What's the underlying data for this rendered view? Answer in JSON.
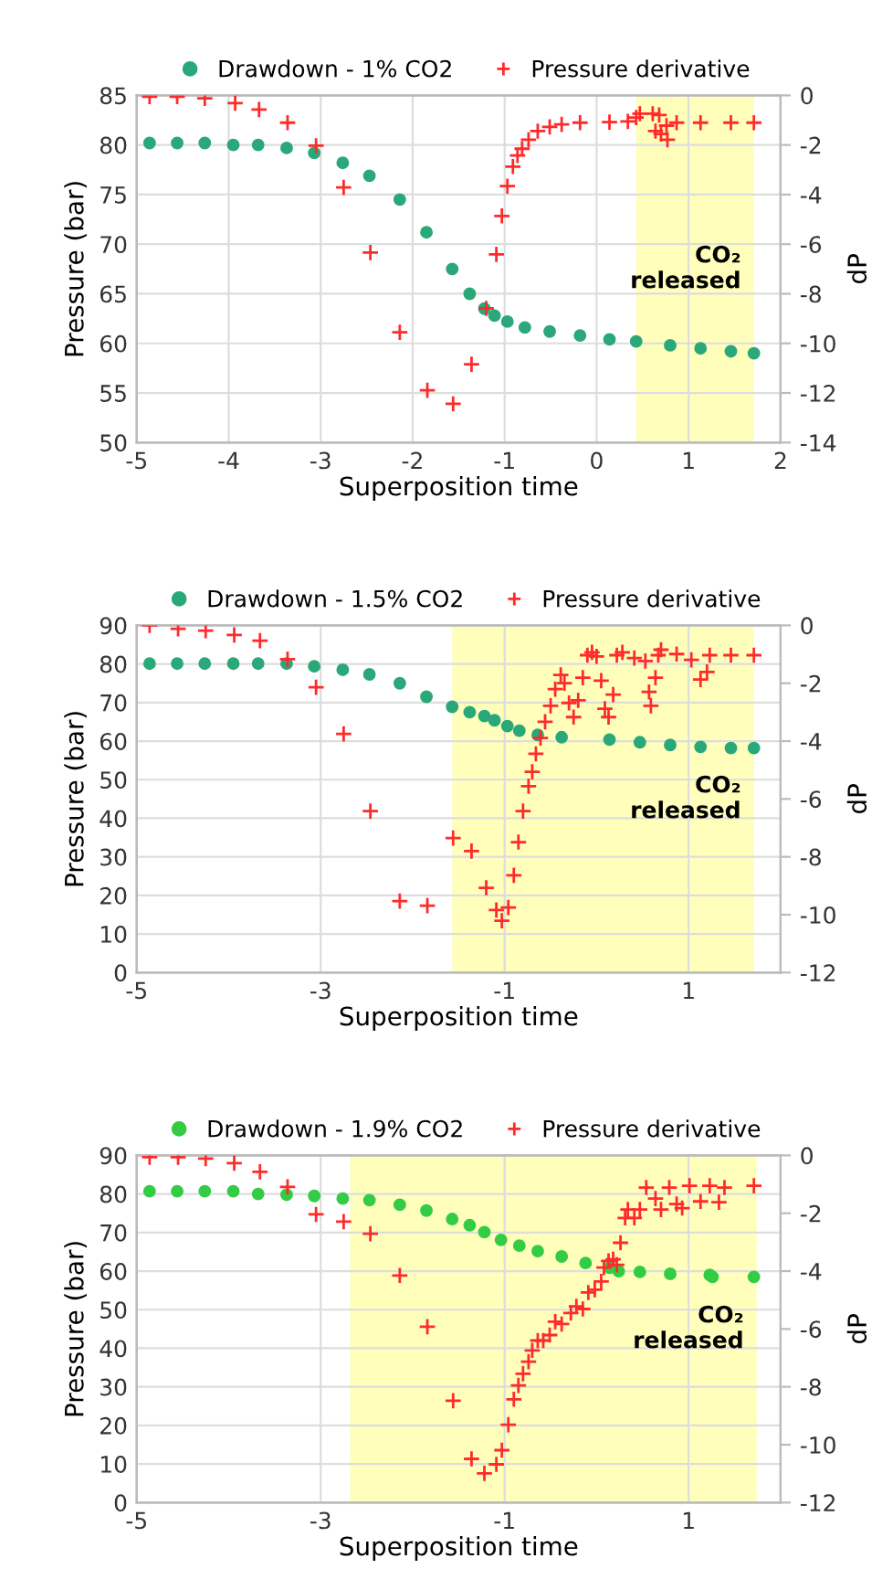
{
  "chart_data": [
    {
      "type": "scatter",
      "xlabel": "Superposition time",
      "ylabel": "Pressure (bar)",
      "y2label": "dP",
      "xlim": [
        -5,
        2
      ],
      "xticks": [
        -5,
        -4,
        -3,
        -2,
        -1,
        0,
        1,
        2
      ],
      "ylim": [
        50,
        85
      ],
      "yticks": [
        50,
        55,
        60,
        65,
        70,
        75,
        80,
        85
      ],
      "y2lim": [
        -14,
        0
      ],
      "y2ticks": [
        -14,
        -12,
        -10,
        -8,
        -6,
        -4,
        -2,
        0
      ],
      "grid": true,
      "legend": "top",
      "bands": [
        {
          "axis": "x",
          "from": 0.43,
          "to": 1.71,
          "color": "#ffffbb",
          "label": "CO₂\nreleased"
        }
      ],
      "series": [
        {
          "name": "Drawdown - 1% CO2",
          "color": "#2aa87a",
          "marker": "circle",
          "x": [
            -4.86,
            -4.56,
            -4.26,
            -3.95,
            -3.68,
            -3.37,
            -3.07,
            -2.76,
            -2.47,
            -2.14,
            -1.85,
            -1.57,
            -1.38,
            -1.22,
            -1.11,
            -0.97,
            -0.78,
            -0.51,
            -0.18,
            0.14,
            0.43,
            0.8,
            1.13,
            1.46,
            1.71
          ],
          "values": [
            80.2,
            80.2,
            80.2,
            80.0,
            80.0,
            79.7,
            79.2,
            78.2,
            76.9,
            74.5,
            71.2,
            67.5,
            65.0,
            63.5,
            62.8,
            62.2,
            61.6,
            61.2,
            60.8,
            60.4,
            60.2,
            59.8,
            59.5,
            59.2,
            59.0
          ]
        },
        {
          "name": "Pressure derivative",
          "color": "#ff2a2a",
          "marker": "cross",
          "axis": "y2",
          "x": [
            -4.86,
            -4.56,
            -4.26,
            -3.93,
            -3.67,
            -3.36,
            -3.05,
            -2.75,
            -2.46,
            -2.14,
            -1.84,
            -1.56,
            -1.36,
            -1.2,
            -1.09,
            -1.03,
            -0.97,
            -0.91,
            -0.86,
            -0.81,
            -0.74,
            -0.64,
            -0.51,
            -0.38,
            -0.18,
            0.14,
            0.34,
            0.43,
            0.47,
            0.61,
            0.68,
            0.64,
            0.7,
            0.77,
            0.76,
            0.87,
            1.13,
            1.46,
            1.71
          ],
          "values": [
            -0.05,
            -0.05,
            -0.12,
            -0.31,
            -0.57,
            -1.1,
            -2.03,
            -3.71,
            -6.34,
            -9.55,
            -11.89,
            -12.44,
            -10.84,
            -8.59,
            -6.41,
            -4.86,
            -3.66,
            -2.87,
            -2.42,
            -2.15,
            -1.79,
            -1.44,
            -1.27,
            -1.17,
            -1.1,
            -1.08,
            -1.05,
            -0.89,
            -0.74,
            -0.74,
            -0.79,
            -1.44,
            -1.56,
            -1.79,
            -1.22,
            -1.1,
            -1.1,
            -1.1,
            -1.1
          ]
        }
      ]
    },
    {
      "type": "scatter",
      "xlabel": "Superposition time",
      "ylabel": "Pressure (bar)",
      "y2label": "dP",
      "xlim": [
        -5,
        2
      ],
      "xticks": [
        -5,
        -3,
        -1,
        1
      ],
      "ylim": [
        0,
        90
      ],
      "yticks": [
        0,
        10,
        20,
        30,
        40,
        50,
        60,
        70,
        80,
        90
      ],
      "y2lim": [
        -12,
        0
      ],
      "y2ticks": [
        -12,
        -10,
        -8,
        -6,
        -4,
        -2,
        0
      ],
      "grid": true,
      "legend": "top",
      "bands": [
        {
          "axis": "x",
          "from": -1.57,
          "to": 1.71,
          "color": "#ffffbb",
          "label": "CO₂\nreleased"
        }
      ],
      "series": [
        {
          "name": "Drawdown - 1.5% CO2",
          "color": "#2aa87a",
          "marker": "circle",
          "x": [
            -4.86,
            -4.56,
            -4.26,
            -3.95,
            -3.68,
            -3.37,
            -3.07,
            -2.76,
            -2.47,
            -2.14,
            -1.85,
            -1.57,
            -1.38,
            -1.22,
            -1.11,
            -0.97,
            -0.84,
            -0.64,
            -0.38,
            0.14,
            0.47,
            0.8,
            1.13,
            1.46,
            1.71
          ],
          "values": [
            80.1,
            80.1,
            80.1,
            80.1,
            80.1,
            80.1,
            79.4,
            78.5,
            77.3,
            75.0,
            71.5,
            68.9,
            67.5,
            66.5,
            65.4,
            63.9,
            62.7,
            61.6,
            61.0,
            60.4,
            59.7,
            59.0,
            58.5,
            58.2,
            58.2
          ]
        },
        {
          "name": "Pressure derivative",
          "color": "#ff2a2a",
          "marker": "cross",
          "axis": "y2",
          "x": [
            -4.86,
            -4.55,
            -4.25,
            -3.94,
            -3.66,
            -3.36,
            -3.05,
            -2.75,
            -2.46,
            -2.14,
            -1.84,
            -1.56,
            -1.36,
            -1.2,
            -1.09,
            -1.03,
            -0.96,
            -0.9,
            -0.85,
            -0.8,
            -0.74,
            -0.7,
            -0.66,
            -0.61,
            -0.56,
            -0.5,
            -0.45,
            -0.39,
            -0.35,
            -0.3,
            -0.25,
            -0.2,
            -0.15,
            -0.1,
            -0.05,
            0.0,
            0.05,
            0.09,
            0.13,
            0.18,
            0.22,
            0.28,
            0.41,
            0.53,
            0.57,
            0.59,
            0.64,
            0.67,
            0.7,
            0.87,
            1.03,
            1.13,
            1.2,
            1.23,
            1.46,
            1.71
          ],
          "values": [
            0.0,
            -0.12,
            -0.18,
            -0.33,
            -0.53,
            -1.17,
            -2.14,
            -3.75,
            -6.42,
            -9.53,
            -9.69,
            -7.35,
            -7.8,
            -9.07,
            -9.84,
            -10.21,
            -9.75,
            -8.64,
            -7.49,
            -6.42,
            -5.56,
            -5.06,
            -4.44,
            -3.89,
            -3.33,
            -2.78,
            -2.2,
            -1.71,
            -2.0,
            -2.68,
            -3.17,
            -2.59,
            -1.81,
            -1.03,
            -0.93,
            -1.07,
            -1.91,
            -2.88,
            -3.17,
            -2.39,
            -1.03,
            -0.93,
            -1.13,
            -1.23,
            -2.3,
            -2.78,
            -1.81,
            -1.03,
            -0.84,
            -0.99,
            -1.19,
            -1.87,
            -1.61,
            -1.03,
            -1.03,
            -1.03
          ]
        }
      ]
    },
    {
      "type": "scatter",
      "xlabel": "Superposition time",
      "ylabel": "Pressure (bar)",
      "y2label": "dP",
      "xlim": [
        -5,
        2
      ],
      "xticks": [
        -5,
        -3,
        -1,
        1
      ],
      "ylim": [
        0,
        90
      ],
      "yticks": [
        0,
        10,
        20,
        30,
        40,
        50,
        60,
        70,
        80,
        90
      ],
      "y2lim": [
        -12,
        0
      ],
      "y2ticks": [
        -12,
        -10,
        -8,
        -6,
        -4,
        -2,
        0
      ],
      "grid": true,
      "legend": "top",
      "bands": [
        {
          "axis": "x",
          "from": -2.68,
          "to": 1.74,
          "color": "#ffffbb",
          "label": "CO₂\nreleased"
        }
      ],
      "series": [
        {
          "name": "Drawdown - 1.9% CO2",
          "color": "#33cc44",
          "marker": "circle",
          "x": [
            -4.86,
            -4.56,
            -4.26,
            -3.95,
            -3.68,
            -3.37,
            -3.07,
            -2.76,
            -2.47,
            -2.14,
            -1.85,
            -1.57,
            -1.38,
            -1.22,
            -1.04,
            -0.84,
            -0.64,
            -0.38,
            -0.12,
            0.14,
            0.24,
            0.47,
            0.8,
            1.23,
            1.26,
            1.71
          ],
          "values": [
            80.7,
            80.7,
            80.7,
            80.7,
            80.0,
            79.8,
            79.5,
            78.8,
            78.4,
            77.2,
            75.7,
            73.5,
            71.9,
            70.1,
            68.1,
            66.6,
            65.2,
            63.8,
            62.1,
            60.9,
            60.0,
            59.8,
            59.3,
            59.0,
            58.5,
            58.5
          ]
        },
        {
          "name": "Pressure derivative",
          "color": "#ff2a2a",
          "marker": "cross",
          "axis": "y2",
          "x": [
            -4.86,
            -4.55,
            -4.25,
            -3.94,
            -3.66,
            -3.36,
            -3.05,
            -2.75,
            -2.46,
            -2.14,
            -1.84,
            -1.56,
            -1.36,
            -1.22,
            -1.09,
            -1.03,
            -0.96,
            -0.9,
            -0.85,
            -0.8,
            -0.74,
            -0.7,
            -0.64,
            -0.58,
            -0.51,
            -0.45,
            -0.38,
            -0.28,
            -0.22,
            -0.15,
            -0.09,
            -0.02,
            0.05,
            0.08,
            0.13,
            0.18,
            0.22,
            0.26,
            0.31,
            0.34,
            0.41,
            0.47,
            0.54,
            0.64,
            0.7,
            0.79,
            0.87,
            0.93,
            1.01,
            1.13,
            1.23,
            1.33,
            1.39,
            1.71
          ],
          "values": [
            -0.06,
            -0.06,
            -0.11,
            -0.27,
            -0.57,
            -1.09,
            -2.04,
            -2.29,
            -2.71,
            -4.15,
            -5.92,
            -8.48,
            -10.49,
            -10.99,
            -10.68,
            -10.19,
            -9.31,
            -8.43,
            -7.95,
            -7.55,
            -7.13,
            -6.74,
            -6.4,
            -6.4,
            -6.21,
            -5.75,
            -5.83,
            -5.45,
            -5.22,
            -5.31,
            -4.74,
            -4.64,
            -4.36,
            -3.88,
            -3.65,
            -3.59,
            -3.78,
            -3.02,
            -2.16,
            -1.87,
            -2.16,
            -1.87,
            -1.11,
            -1.49,
            -1.87,
            -1.11,
            -1.68,
            -1.82,
            -1.05,
            -1.59,
            -1.05,
            -1.62,
            -1.11,
            -1.05
          ]
        }
      ]
    }
  ]
}
